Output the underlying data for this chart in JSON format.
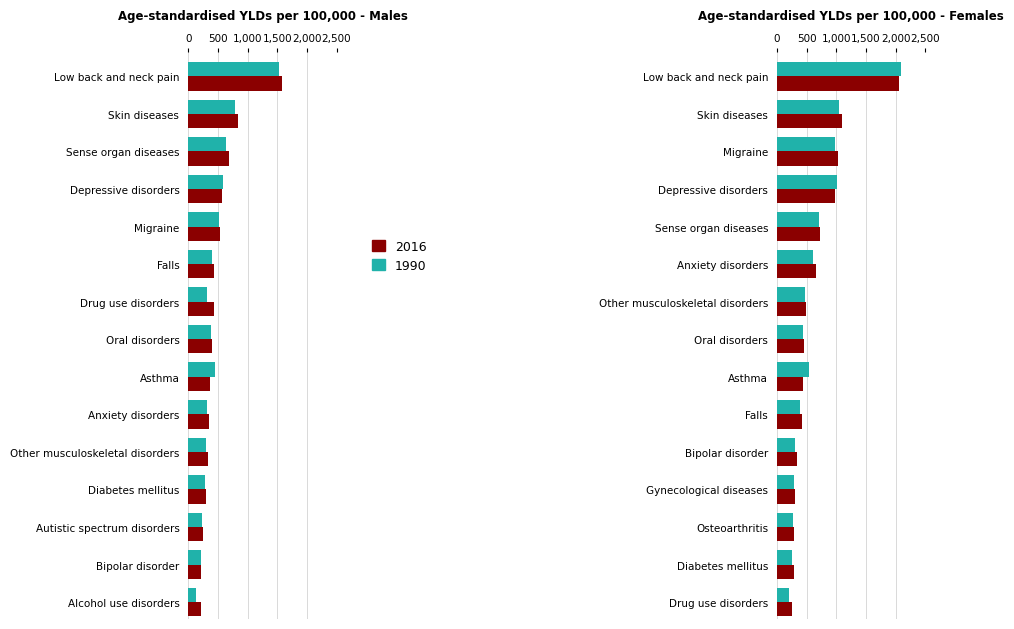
{
  "males": {
    "title": "Age-standardised YLDs per 100,000 - Males",
    "categories": [
      "Low back and neck pain",
      "Skin diseases",
      "Sense organ diseases",
      "Depressive disorders",
      "Migraine",
      "Falls",
      "Drug use disorders",
      "Oral disorders",
      "Asthma",
      "Anxiety disorders",
      "Other musculoskeletal disorders",
      "Diabetes mellitus",
      "Autistic spectrum disorders",
      "Bipolar disorder",
      "Alcohol use disorders"
    ],
    "values_2016": [
      1580,
      830,
      680,
      560,
      530,
      440,
      430,
      390,
      360,
      350,
      330,
      300,
      240,
      220,
      215
    ],
    "values_1990": [
      1530,
      790,
      640,
      580,
      520,
      400,
      310,
      375,
      450,
      320,
      295,
      280,
      230,
      208,
      135
    ]
  },
  "females": {
    "title": "Age-standardised YLDs per 100,000 - Females",
    "categories": [
      "Low back and neck pain",
      "Skin diseases",
      "Migraine",
      "Depressive disorders",
      "Sense organ diseases",
      "Anxiety disorders",
      "Other musculoskeletal disorders",
      "Oral disorders",
      "Asthma",
      "Falls",
      "Bipolar disorder",
      "Gynecological diseases",
      "Osteoarthritis",
      "Diabetes mellitus",
      "Drug use disorders"
    ],
    "values_2016": [
      2050,
      1100,
      1020,
      980,
      730,
      660,
      490,
      455,
      430,
      415,
      330,
      310,
      290,
      280,
      255
    ],
    "values_1990": [
      2090,
      1050,
      975,
      1010,
      700,
      610,
      470,
      440,
      540,
      390,
      295,
      285,
      275,
      260,
      195
    ]
  },
  "color_2016": "#8B0000",
  "color_1990": "#20B2AA",
  "xlim_max": 2500,
  "xticks": [
    0,
    500,
    1000,
    1500,
    2000,
    2500
  ],
  "xticklabels": [
    "0",
    "500",
    "1,000",
    "1,500",
    "2,000",
    "2,500"
  ],
  "background_color": "#ffffff",
  "bar_height": 0.38,
  "legend_labels": [
    "2016",
    "1990"
  ]
}
